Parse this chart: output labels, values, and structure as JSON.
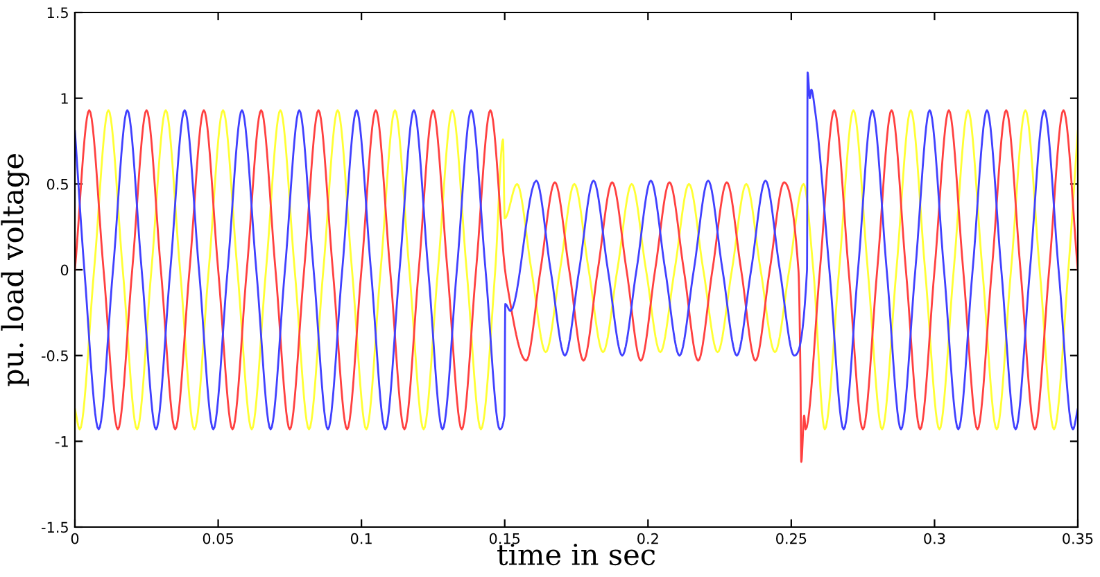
{
  "chart_data": {
    "type": "line",
    "xlabel": "time in sec",
    "ylabel": "pu. load voltage",
    "xlim": [
      0,
      0.35
    ],
    "xticks": [
      0,
      0.05,
      0.1,
      0.15,
      0.2,
      0.25,
      0.3,
      0.35
    ],
    "ylim": [
      -1.5,
      1.5
    ],
    "yticks": [
      -1.5,
      -1,
      -0.5,
      0,
      0.5,
      1,
      1.5
    ],
    "grid": false,
    "legend": false,
    "series": [
      {
        "color": "#ffff33",
        "x": [
          0,
          0.0017,
          0.0067,
          0.0117,
          0.0167,
          0.0217,
          0.0267,
          0.0317,
          0.0367,
          0.0417,
          0.0467,
          0.0517,
          0.0567,
          0.0617,
          0.0667,
          0.0717,
          0.0767,
          0.0817,
          0.0867,
          0.0917,
          0.0967,
          0.1017,
          0.1067,
          0.1117,
          0.1167,
          0.1217,
          0.1267,
          0.1317,
          0.1367,
          0.1417,
          0.1467,
          0.1494,
          0.15,
          0.1543,
          0.1593,
          0.1643,
          0.1693,
          0.1743,
          0.1793,
          0.1843,
          0.1893,
          0.1943,
          0.1993,
          0.2043,
          0.2093,
          0.2143,
          0.2193,
          0.2243,
          0.2293,
          0.2343,
          0.2393,
          0.2443,
          0.2493,
          0.2543,
          0.2577,
          0.2617,
          0.2667,
          0.2717,
          0.2767,
          0.2817,
          0.2867,
          0.2917,
          0.2967,
          0.3017,
          0.3067,
          0.3117,
          0.3167,
          0.3217,
          0.3267,
          0.3317,
          0.3367,
          0.3417,
          0.3467,
          0.35
        ],
        "values": [
          -0.81,
          -0.93,
          0,
          0.93,
          0,
          -0.93,
          0,
          0.93,
          0,
          -0.93,
          0,
          0.93,
          0,
          -0.93,
          0,
          0.93,
          0,
          -0.93,
          0,
          0.93,
          0,
          -0.93,
          0,
          0.93,
          0,
          -0.93,
          0,
          0.93,
          0,
          -0.93,
          0,
          0.76,
          0.3,
          0.5,
          0,
          -0.48,
          0,
          0.5,
          0,
          -0.48,
          0,
          0.5,
          0,
          -0.48,
          0,
          0.5,
          0,
          -0.48,
          0,
          0.5,
          0,
          -0.48,
          0,
          0.5,
          0,
          -0.93,
          0,
          0.93,
          0,
          -0.93,
          0,
          0.93,
          0,
          -0.93,
          0,
          0.93,
          0,
          -0.93,
          0,
          0.93,
          0,
          -0.93,
          0,
          0.81
        ]
      },
      {
        "color": "#ff4040",
        "x": [
          0,
          0.005,
          0.01,
          0.015,
          0.02,
          0.025,
          0.03,
          0.035,
          0.04,
          0.045,
          0.05,
          0.055,
          0.06,
          0.065,
          0.07,
          0.075,
          0.08,
          0.085,
          0.09,
          0.095,
          0.1,
          0.105,
          0.11,
          0.115,
          0.12,
          0.125,
          0.13,
          0.135,
          0.14,
          0.145,
          0.1505,
          0.1575,
          0.1625,
          0.1675,
          0.1725,
          0.1775,
          0.1825,
          0.1875,
          0.1925,
          0.1975,
          0.2025,
          0.2075,
          0.2125,
          0.2175,
          0.2225,
          0.2275,
          0.2325,
          0.2375,
          0.2425,
          0.2475,
          0.2525,
          0.2532,
          0.2535,
          0.2545,
          0.255,
          0.26,
          0.265,
          0.27,
          0.275,
          0.28,
          0.285,
          0.29,
          0.295,
          0.3,
          0.305,
          0.31,
          0.315,
          0.32,
          0.325,
          0.33,
          0.335,
          0.34,
          0.345,
          0.35
        ],
        "values": [
          0,
          0.93,
          0,
          -0.93,
          0,
          0.93,
          0,
          -0.93,
          0,
          0.93,
          0,
          -0.93,
          0,
          0.93,
          0,
          -0.93,
          0,
          0.93,
          0,
          -0.93,
          0,
          0.93,
          0,
          -0.93,
          0,
          0.93,
          0,
          -0.93,
          0,
          0.93,
          -0.05,
          -0.53,
          0,
          0.51,
          0,
          -0.53,
          0,
          0.51,
          0,
          -0.53,
          0,
          0.51,
          0,
          -0.53,
          0,
          0.51,
          0,
          -0.53,
          0,
          0.51,
          0,
          -0.6,
          -1.12,
          -0.85,
          -0.93,
          0,
          0.93,
          0,
          -0.93,
          0,
          0.93,
          0,
          -0.93,
          0,
          0.93,
          0,
          -0.93,
          0,
          0.93,
          0,
          -0.93,
          0,
          0.93,
          0
        ]
      },
      {
        "color": "#4040ff",
        "x": [
          0,
          0.0033,
          0.0083,
          0.0133,
          0.0183,
          0.0233,
          0.0283,
          0.0333,
          0.0383,
          0.0433,
          0.0483,
          0.0533,
          0.0583,
          0.0633,
          0.0683,
          0.0733,
          0.0783,
          0.0833,
          0.0883,
          0.0933,
          0.0983,
          0.1033,
          0.1083,
          0.1133,
          0.1183,
          0.1233,
          0.1283,
          0.1333,
          0.1383,
          0.1433,
          0.1483,
          0.1499,
          0.1502,
          0.152,
          0.161,
          0.166,
          0.171,
          0.176,
          0.181,
          0.186,
          0.191,
          0.196,
          0.201,
          0.206,
          0.211,
          0.216,
          0.221,
          0.226,
          0.231,
          0.236,
          0.241,
          0.246,
          0.251,
          0.2555,
          0.2557,
          0.2565,
          0.257,
          0.2583,
          0.2633,
          0.2683,
          0.2733,
          0.2783,
          0.2833,
          0.2883,
          0.2933,
          0.2983,
          0.3033,
          0.3083,
          0.3133,
          0.3183,
          0.3233,
          0.3283,
          0.3333,
          0.3383,
          0.3433,
          0.3483,
          0.35
        ],
        "values": [
          0.81,
          0,
          -0.93,
          0,
          0.93,
          0,
          -0.93,
          0,
          0.93,
          0,
          -0.93,
          0,
          0.93,
          0,
          -0.93,
          0,
          0.93,
          0,
          -0.93,
          0,
          0.93,
          0,
          -0.93,
          0,
          0.93,
          0,
          -0.93,
          0,
          0.93,
          0,
          -0.93,
          -0.85,
          -0.2,
          -0.24,
          0.52,
          0,
          -0.5,
          0,
          0.52,
          0,
          -0.5,
          0,
          0.52,
          0,
          -0.5,
          0,
          0.52,
          0,
          -0.5,
          0,
          0.52,
          0,
          -0.5,
          0,
          1.15,
          1.0,
          1.05,
          0.93,
          0,
          -0.93,
          0,
          0.93,
          0,
          -0.93,
          0,
          0.93,
          0,
          -0.93,
          0,
          0.93,
          0,
          -0.93,
          0,
          0.93,
          0,
          -0.93,
          -0.81
        ]
      }
    ]
  }
}
